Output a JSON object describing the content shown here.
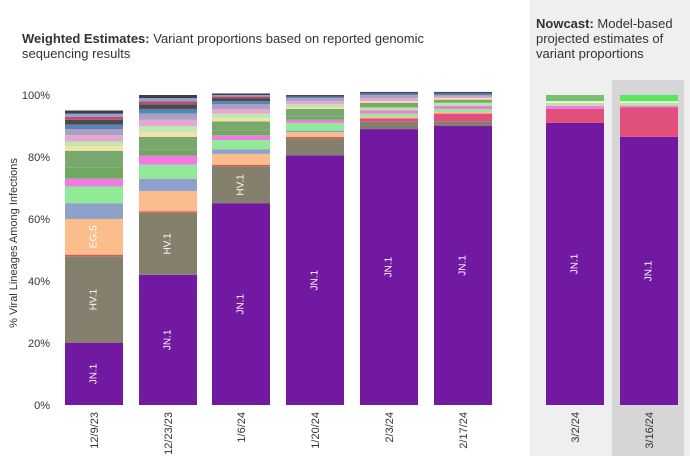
{
  "weighted_panel": {
    "title_bold": "Weighted Estimates:",
    "title_rest": " Variant proportions based on reported genomic sequencing results"
  },
  "nowcast_panel": {
    "title_bold": "Nowcast:",
    "title_rest": " Model-based projected estimates of variant proportions"
  },
  "chart_data": {
    "type": "bar",
    "stacked": true,
    "ylabel": "% Viral Lineages Among Infections",
    "yticks": [
      "0%",
      "20%",
      "40%",
      "60%",
      "80%",
      "100%"
    ],
    "ylim": [
      0,
      100
    ],
    "grid": false,
    "legend": "none",
    "categories": [
      "12/9/23",
      "12/23/23",
      "1/6/24",
      "1/20/24",
      "2/3/24",
      "2/17/24",
      "3/2/24",
      "3/16/24"
    ],
    "groups": {
      "weighted": [
        "12/9/23",
        "12/23/23",
        "1/6/24",
        "1/20/24",
        "2/3/24",
        "2/17/24"
      ],
      "nowcast": [
        "3/2/24",
        "3/16/24"
      ]
    },
    "bars": [
      {
        "category": "12/9/23",
        "segments": [
          {
            "label": "JN.1",
            "value": 20,
            "color": "#7119a0"
          },
          {
            "label": "HV.1",
            "value": 28,
            "color": "#85806e"
          },
          {
            "label": "",
            "value": 0.5,
            "color": "#d95a4a"
          },
          {
            "label": "EG.5",
            "value": 11.5,
            "color": "#fbbd8c"
          },
          {
            "label": "",
            "value": 5,
            "color": "#8fa1ca"
          },
          {
            "label": "",
            "value": 5.5,
            "color": "#90ea97"
          },
          {
            "label": "",
            "value": 2.5,
            "color": "#f07ae1"
          },
          {
            "label": "",
            "value": 3.5,
            "color": "#6fa960"
          },
          {
            "label": "",
            "value": 5.5,
            "color": "#78a86e"
          },
          {
            "label": "",
            "value": 1.5,
            "color": "#f1e3a0"
          },
          {
            "label": "",
            "value": 1.5,
            "color": "#c0e7b4"
          },
          {
            "label": "",
            "value": 2,
            "color": "#e8a7d1"
          },
          {
            "label": "",
            "value": 2,
            "color": "#a9a0c4"
          },
          {
            "label": "",
            "value": 1.5,
            "color": "#5a84b4"
          },
          {
            "label": "",
            "value": 1.5,
            "color": "#4a4a4a"
          },
          {
            "label": "",
            "value": 1,
            "color": "#c04a6a"
          },
          {
            "label": "",
            "value": 1,
            "color": "#8aa3d2"
          },
          {
            "label": "",
            "value": 1,
            "color": "#3f3f3f"
          }
        ]
      },
      {
        "category": "12/23/23",
        "segments": [
          {
            "label": "JN.1",
            "value": 42,
            "color": "#7119a0"
          },
          {
            "label": "HV.1",
            "value": 20,
            "color": "#85806e"
          },
          {
            "label": "",
            "value": 0.5,
            "color": "#d95a4a"
          },
          {
            "label": "",
            "value": 6.5,
            "color": "#fbbd8c"
          },
          {
            "label": "",
            "value": 4,
            "color": "#8fa1ca"
          },
          {
            "label": "",
            "value": 4.5,
            "color": "#90ea97"
          },
          {
            "label": "",
            "value": 3,
            "color": "#f07ae1"
          },
          {
            "label": "",
            "value": 2,
            "color": "#6fa960"
          },
          {
            "label": "",
            "value": 4,
            "color": "#78a86e"
          },
          {
            "label": "",
            "value": 1.5,
            "color": "#f1e3a0"
          },
          {
            "label": "",
            "value": 2,
            "color": "#c0e7b4"
          },
          {
            "label": "",
            "value": 2,
            "color": "#e8a7d1"
          },
          {
            "label": "",
            "value": 2,
            "color": "#a9a0c4"
          },
          {
            "label": "",
            "value": 1.5,
            "color": "#5a84b4"
          },
          {
            "label": "",
            "value": 1.5,
            "color": "#4a4a4a"
          },
          {
            "label": "",
            "value": 1,
            "color": "#c04a6a"
          },
          {
            "label": "",
            "value": 1,
            "color": "#8aa3d2"
          },
          {
            "label": "",
            "value": 1,
            "color": "#3f3f3f"
          }
        ]
      },
      {
        "category": "1/6/24",
        "segments": [
          {
            "label": "JN.1",
            "value": 65,
            "color": "#7119a0"
          },
          {
            "label": "HV.1",
            "value": 12,
            "color": "#85806e"
          },
          {
            "label": "",
            "value": 0.5,
            "color": "#d95a4a"
          },
          {
            "label": "",
            "value": 3.5,
            "color": "#fbbd8c"
          },
          {
            "label": "",
            "value": 1.5,
            "color": "#8fa1ca"
          },
          {
            "label": "",
            "value": 3,
            "color": "#90ea97"
          },
          {
            "label": "",
            "value": 1.5,
            "color": "#f07ae1"
          },
          {
            "label": "",
            "value": 1.5,
            "color": "#6fa960"
          },
          {
            "label": "",
            "value": 3,
            "color": "#78a86e"
          },
          {
            "label": "",
            "value": 1,
            "color": "#f1e3a0"
          },
          {
            "label": "",
            "value": 1.5,
            "color": "#c0e7b4"
          },
          {
            "label": "",
            "value": 1.5,
            "color": "#e8a7d1"
          },
          {
            "label": "",
            "value": 1.5,
            "color": "#a9a0c4"
          },
          {
            "label": "",
            "value": 1,
            "color": "#5a84b4"
          },
          {
            "label": "",
            "value": 1,
            "color": "#4a4a4a"
          },
          {
            "label": "",
            "value": 0.5,
            "color": "#c04a6a"
          },
          {
            "label": "",
            "value": 0.5,
            "color": "#8aa3d2"
          },
          {
            "label": "",
            "value": 0.5,
            "color": "#3f3f3f"
          }
        ]
      },
      {
        "category": "1/20/24",
        "segments": [
          {
            "label": "JN.1",
            "value": 80.5,
            "color": "#7119a0"
          },
          {
            "label": "",
            "value": 5.5,
            "color": "#85806e"
          },
          {
            "label": "",
            "value": 0.5,
            "color": "#d95a4a"
          },
          {
            "label": "",
            "value": 1.5,
            "color": "#fbbd8c"
          },
          {
            "label": "",
            "value": 0.5,
            "color": "#8fa1ca"
          },
          {
            "label": "",
            "value": 2.5,
            "color": "#90ea97"
          },
          {
            "label": "",
            "value": 1,
            "color": "#f07ae1"
          },
          {
            "label": "",
            "value": 1,
            "color": "#6fa960"
          },
          {
            "label": "",
            "value": 2.5,
            "color": "#78a86e"
          },
          {
            "label": "",
            "value": 0.5,
            "color": "#f1e3a0"
          },
          {
            "label": "",
            "value": 1,
            "color": "#c0e7b4"
          },
          {
            "label": "",
            "value": 1,
            "color": "#e8a7d1"
          },
          {
            "label": "",
            "value": 1,
            "color": "#a9a0c4"
          },
          {
            "label": "",
            "value": 0.5,
            "color": "#5a84b4"
          },
          {
            "label": "",
            "value": 0.5,
            "color": "#4a4a4a"
          }
        ]
      },
      {
        "category": "2/3/24",
        "segments": [
          {
            "label": "JN.1",
            "value": 89,
            "color": "#7119a0"
          },
          {
            "label": "",
            "value": 2.5,
            "color": "#85806e"
          },
          {
            "label": "",
            "value": 1,
            "color": "#e0507a"
          },
          {
            "label": "",
            "value": 0.5,
            "color": "#fbbd8c"
          },
          {
            "label": "",
            "value": 1,
            "color": "#90ea97"
          },
          {
            "label": "",
            "value": 1,
            "color": "#f07ae1"
          },
          {
            "label": "",
            "value": 1,
            "color": "#b6e6a0"
          },
          {
            "label": "",
            "value": 1.5,
            "color": "#78a86e"
          },
          {
            "label": "",
            "value": 0.5,
            "color": "#f1e3a0"
          },
          {
            "label": "",
            "value": 1,
            "color": "#e8a7d1"
          },
          {
            "label": "",
            "value": 1,
            "color": "#a9a0c4"
          },
          {
            "label": "",
            "value": 0.5,
            "color": "#5a84b4"
          },
          {
            "label": "",
            "value": 0.5,
            "color": "#4a4a4a"
          }
        ]
      },
      {
        "category": "2/17/24",
        "segments": [
          {
            "label": "JN.1",
            "value": 90,
            "color": "#7119a0"
          },
          {
            "label": "",
            "value": 1.5,
            "color": "#85806e"
          },
          {
            "label": "",
            "value": 2.5,
            "color": "#e0507a"
          },
          {
            "label": "",
            "value": 0.5,
            "color": "#fbbd8c"
          },
          {
            "label": "",
            "value": 1,
            "color": "#90ea97"
          },
          {
            "label": "",
            "value": 1,
            "color": "#f07ae1"
          },
          {
            "label": "",
            "value": 1,
            "color": "#b6e6a0"
          },
          {
            "label": "",
            "value": 1,
            "color": "#78a86e"
          },
          {
            "label": "",
            "value": 0.5,
            "color": "#f1e3a0"
          },
          {
            "label": "",
            "value": 0.5,
            "color": "#e8a7d1"
          },
          {
            "label": "",
            "value": 0.5,
            "color": "#a9a0c4"
          },
          {
            "label": "",
            "value": 0.5,
            "color": "#5a84b4"
          },
          {
            "label": "",
            "value": 0.5,
            "color": "#4a4a4a"
          }
        ]
      },
      {
        "category": "3/2/24",
        "segments": [
          {
            "label": "JN.1",
            "value": 91,
            "color": "#7119a0"
          },
          {
            "label": "",
            "value": 4.5,
            "color": "#e0507a"
          },
          {
            "label": "",
            "value": 1,
            "color": "#f07ae1"
          },
          {
            "label": "",
            "value": 1,
            "color": "#b6e6a0"
          },
          {
            "label": "",
            "value": 0.5,
            "color": "#ffffff"
          },
          {
            "label": "",
            "value": 2,
            "color": "#78c06e"
          }
        ]
      },
      {
        "category": "3/16/24",
        "segments": [
          {
            "label": "JN.1",
            "value": 86.5,
            "color": "#7119a0"
          },
          {
            "label": "",
            "value": 9.5,
            "color": "#e0507a"
          },
          {
            "label": "",
            "value": 0.5,
            "color": "#f07ae1"
          },
          {
            "label": "",
            "value": 1,
            "color": "#b6e6a0"
          },
          {
            "label": "",
            "value": 0.5,
            "color": "#ffffff"
          },
          {
            "label": "",
            "value": 2,
            "color": "#5ce65c"
          }
        ]
      }
    ]
  }
}
